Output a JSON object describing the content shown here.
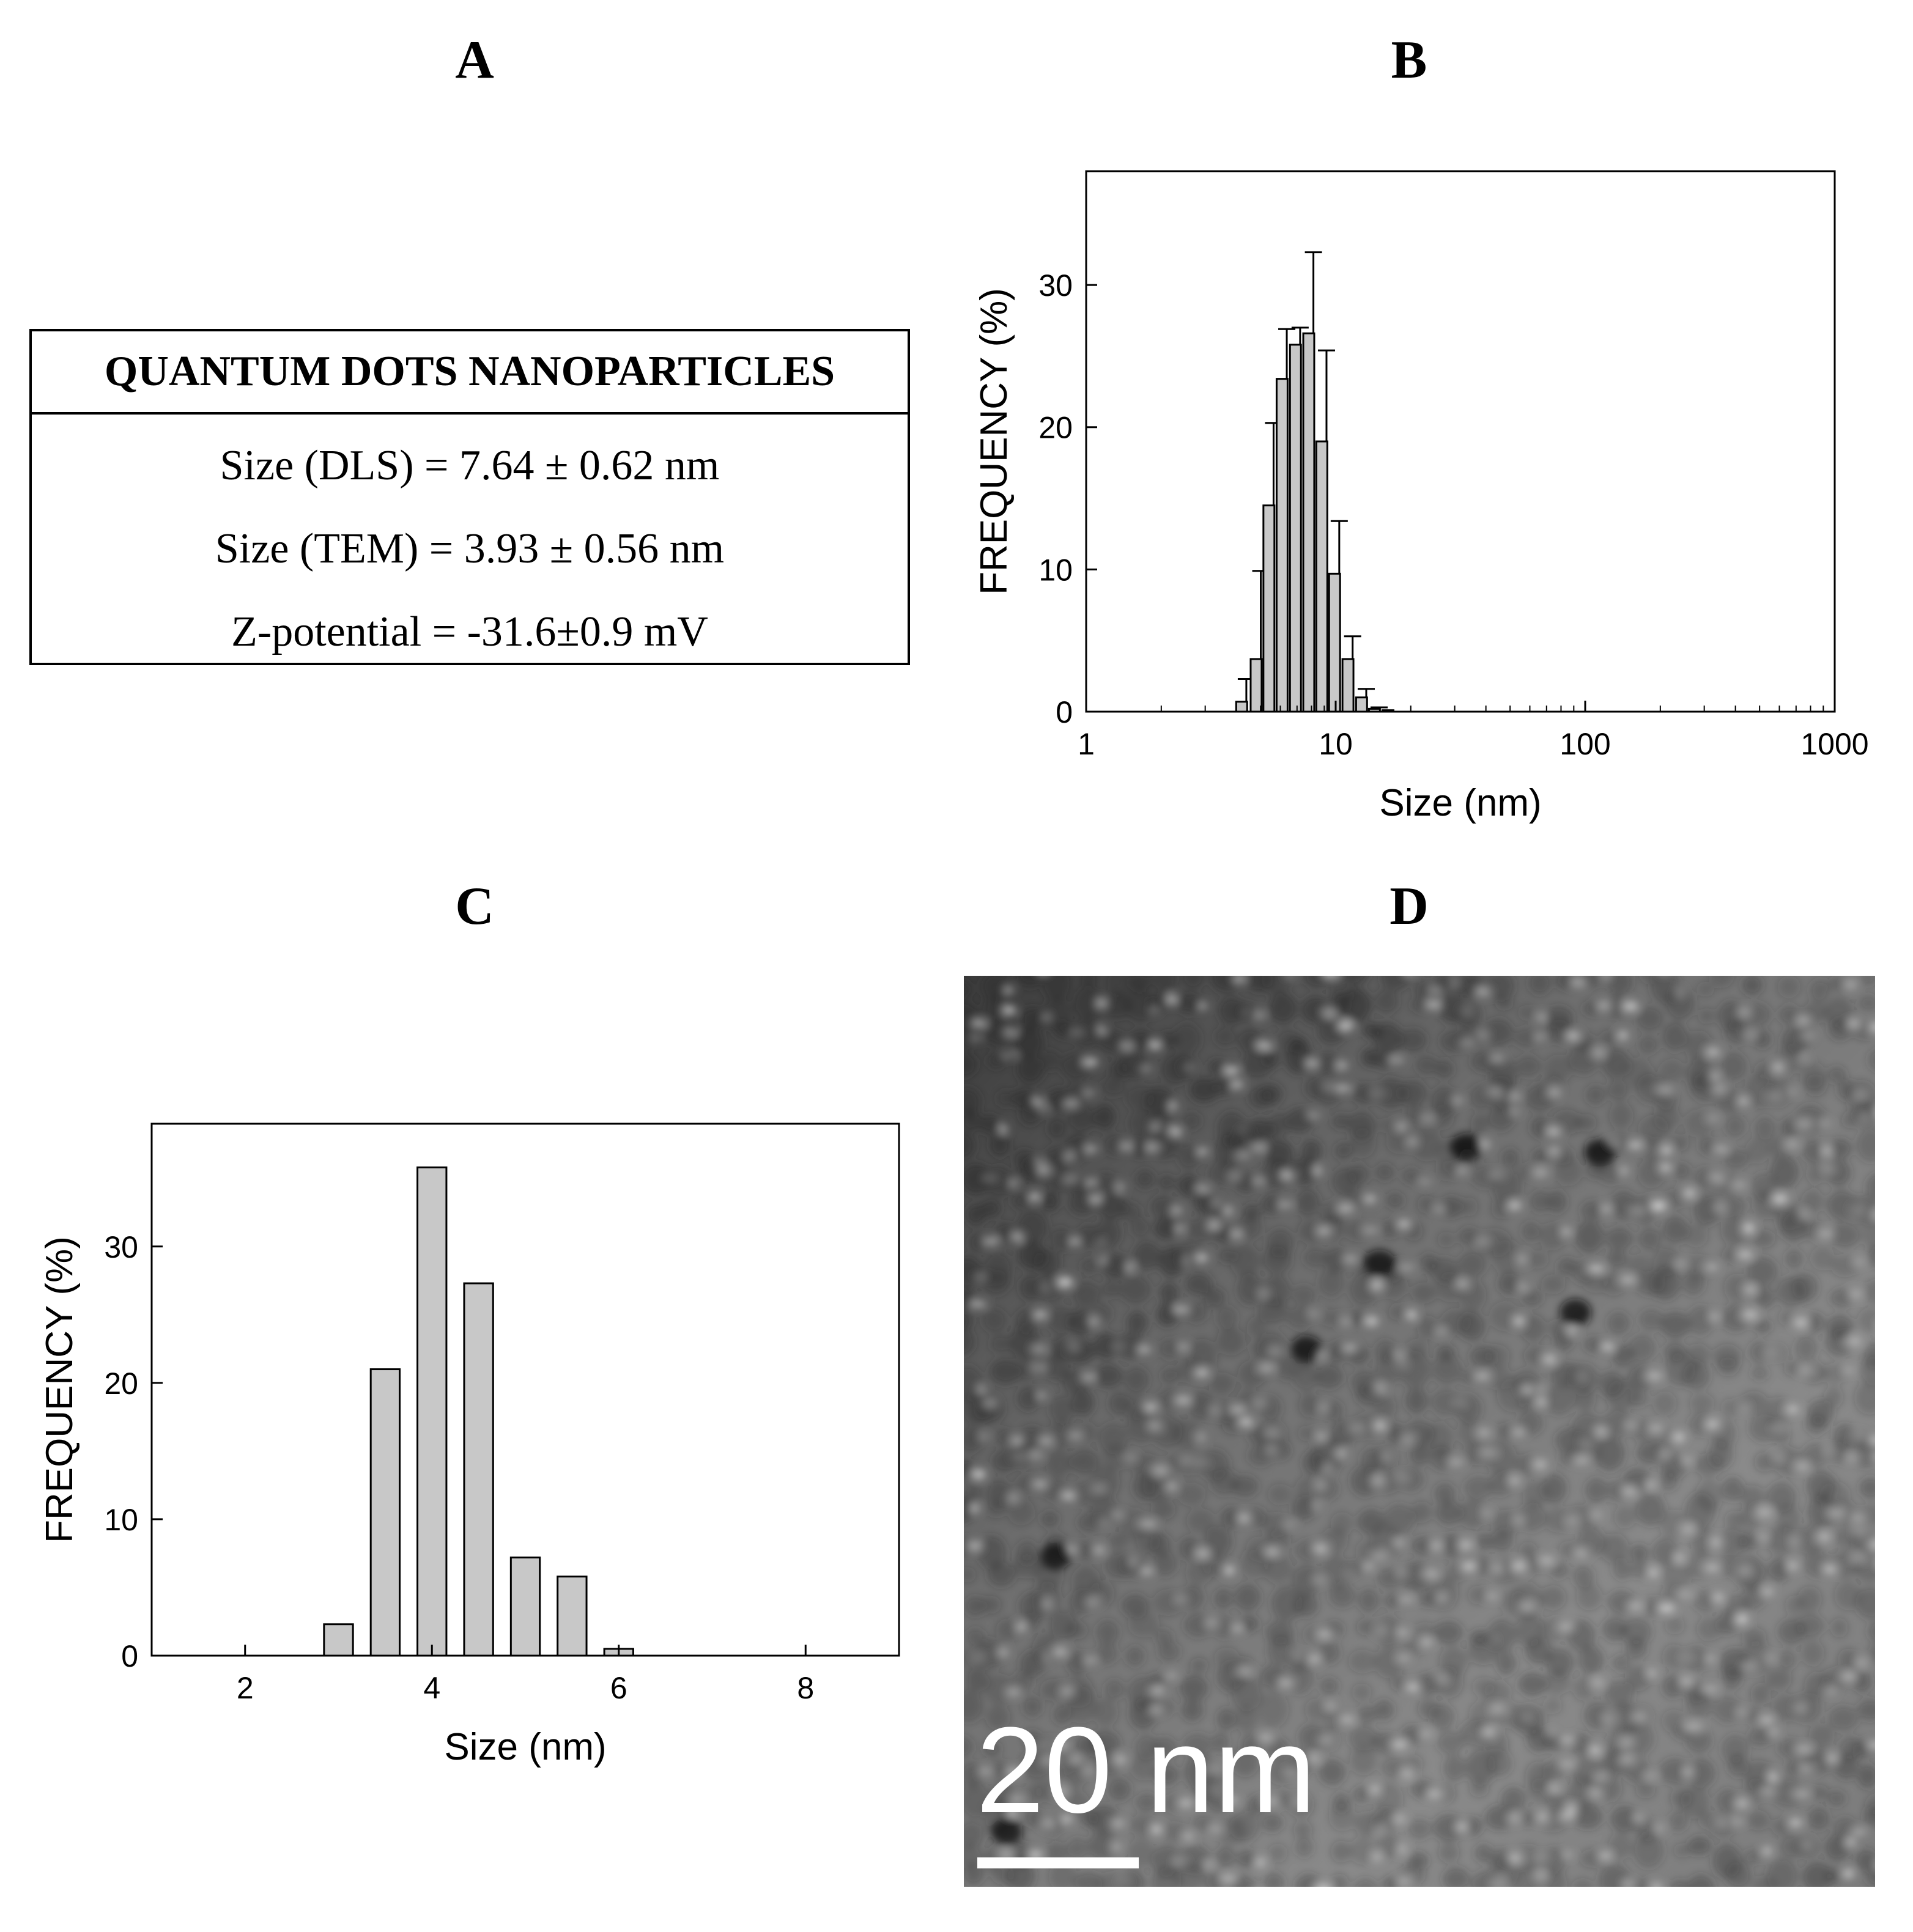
{
  "panels": {
    "a": "A",
    "b": "B",
    "c": "C",
    "d": "D"
  },
  "properties_table": {
    "header": "QUANTUM DOTS NANOPARTICLES",
    "rows": [
      "Size (DLS) = 7.64 ± 0.62 nm",
      "Size (TEM) = 3.93 ± 0.56 nm",
      "Z-potential = -31.6±0.9 mV"
    ]
  },
  "tem_image": {
    "scale_label": "20 nm"
  },
  "chart_data": [
    {
      "id": "dls",
      "type": "bar",
      "title": "",
      "xlabel": "Size (nm)",
      "ylabel": "FREQUENCY (%)",
      "x_scale": "log",
      "xlim": [
        1,
        1000
      ],
      "ylim": [
        0,
        38
      ],
      "xticks": [
        1,
        10,
        100,
        1000
      ],
      "xtick_labels": [
        "1",
        "10",
        "100",
        "1000"
      ],
      "yticks": [
        0,
        10,
        20,
        30
      ],
      "ytick_labels": [
        "0",
        "10",
        "20",
        "30"
      ],
      "grid": false,
      "bar_color": "#c8c8c8",
      "x": [
        4.2,
        4.8,
        5.4,
        6.1,
        6.9,
        7.8,
        8.8,
        9.9,
        11.2,
        12.7,
        14.3,
        16.2
      ],
      "values": [
        0.7,
        3.7,
        14.5,
        23.4,
        25.8,
        26.6,
        19.0,
        9.7,
        3.7,
        1.0,
        0.2,
        0.1
      ],
      "errors": [
        1.6,
        6.2,
        5.8,
        3.5,
        1.2,
        5.7,
        6.4,
        3.7,
        1.6,
        0.6,
        0.1,
        0.0
      ]
    },
    {
      "id": "tem",
      "type": "bar",
      "title": "",
      "xlabel": "Size (nm)",
      "ylabel": "FREQUENCY (%)",
      "xlim": [
        1,
        9
      ],
      "ylim": [
        0,
        39
      ],
      "xticks": [
        2,
        4,
        6,
        8
      ],
      "xtick_labels": [
        "2",
        "4",
        "6",
        "8"
      ],
      "yticks": [
        0,
        10,
        20,
        30
      ],
      "ytick_labels": [
        "0",
        "10",
        "20",
        "30"
      ],
      "grid": false,
      "bar_color": "#c8c8c8",
      "x": [
        3.0,
        3.5,
        4.0,
        4.5,
        5.0,
        5.5,
        6.0
      ],
      "values": [
        2.3,
        21.0,
        35.8,
        27.3,
        7.2,
        5.8,
        0.5
      ]
    }
  ]
}
